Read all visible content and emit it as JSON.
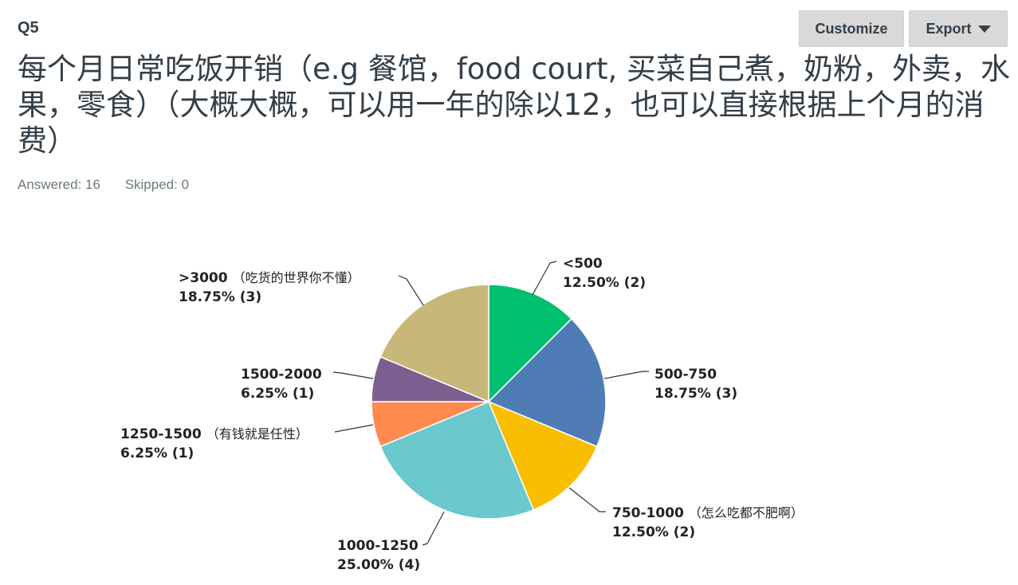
{
  "question": {
    "number": "Q5",
    "title": "每个月日常吃饭开销（e.g 餐馆，food court, 买菜自己煮，奶粉，外卖，水果，零食）（大概大概，可以用一年的除以12，也可以直接根据上个月的消费）",
    "answered": "Answered: 16",
    "skipped": "Skipped: 0"
  },
  "toolbar": {
    "customize_label": "Customize",
    "export_label": "Export"
  },
  "chart_data": {
    "type": "pie",
    "categories": [
      "<500",
      "500-750",
      "750-1000",
      "1000-1250",
      "1250-1500",
      "1500-2000",
      ">3000"
    ],
    "values": [
      2,
      3,
      2,
      4,
      1,
      1,
      3
    ],
    "percent_labels": [
      "12.50% (2)",
      "18.75% (3)",
      "12.50% (2)",
      "25.00% (4)",
      "6.25% (1)",
      "6.25% (1)",
      "18.75% (3)"
    ],
    "notes": [
      "",
      "",
      "（怎么吃都不肥啊）",
      "",
      "（有钱就是任性）",
      "",
      "（吃货的世界你不懂）"
    ],
    "colors": [
      "#00bf6f",
      "#507cb6",
      "#f9be00",
      "#6bc8cd",
      "#ff8b4f",
      "#7d5e90",
      "#c7b879"
    ]
  }
}
